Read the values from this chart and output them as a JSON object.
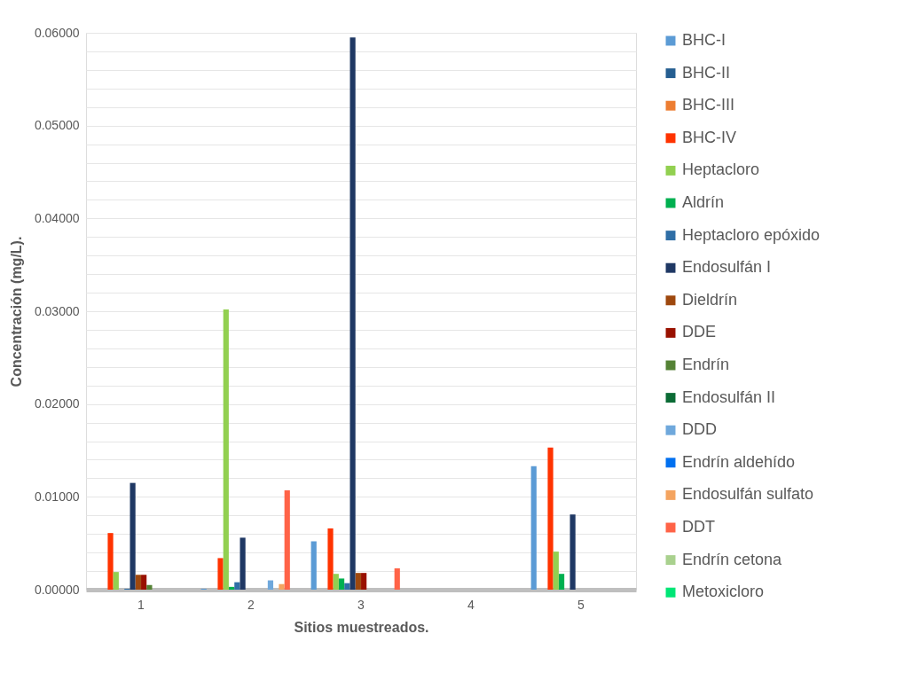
{
  "chart_data": {
    "type": "bar",
    "xlabel": "Sitios muestreados.",
    "ylabel": "Concentración (mg/L).",
    "categories": [
      "1",
      "2",
      "3",
      "4",
      "5"
    ],
    "series": [
      {
        "name": "BHC-I",
        "color": "#5b9bd5",
        "values": [
          0,
          0.0001,
          0.0052,
          0,
          0.0133
        ]
      },
      {
        "name": "BHC-II",
        "color": "#255e91",
        "values": [
          0,
          0,
          0,
          0,
          0
        ]
      },
      {
        "name": "BHC-III",
        "color": "#ed7d31",
        "values": [
          0,
          0,
          0,
          0,
          0
        ]
      },
      {
        "name": "BHC-IV",
        "color": "#ff3300",
        "values": [
          0.0061,
          0.0034,
          0.0066,
          0,
          0.0153
        ]
      },
      {
        "name": "Heptacloro",
        "color": "#92d050",
        "values": [
          0.0019,
          0.0302,
          0.0017,
          0,
          0.0041
        ]
      },
      {
        "name": "Aldrín",
        "color": "#00b050",
        "values": [
          0,
          0.0003,
          0.0012,
          0,
          0.0017
        ]
      },
      {
        "name": "Heptacloro epóxido",
        "color": "#2f6ea6",
        "values": [
          0.0001,
          0.0008,
          0.0007,
          0,
          0
        ]
      },
      {
        "name": "Endosulfán I",
        "color": "#1f3864",
        "values": [
          0.0115,
          0.0056,
          0.0595,
          0,
          0.0081
        ]
      },
      {
        "name": "Dieldrín",
        "color": "#9e480e",
        "values": [
          0.0016,
          0,
          0.0018,
          0,
          0
        ]
      },
      {
        "name": "DDE",
        "color": "#991100",
        "values": [
          0.0016,
          0,
          0.0018,
          0,
          0
        ]
      },
      {
        "name": "Endrín",
        "color": "#548235",
        "values": [
          0.0005,
          0,
          0,
          0,
          0
        ]
      },
      {
        "name": "Endosulfán II",
        "color": "#0b6b35",
        "values": [
          0,
          0,
          0,
          0,
          0
        ]
      },
      {
        "name": "DDD",
        "color": "#6fa8dc",
        "values": [
          0,
          0.001,
          0,
          0,
          0
        ]
      },
      {
        "name": "Endrín aldehído",
        "color": "#0070f0",
        "values": [
          0,
          0,
          0,
          0,
          0
        ]
      },
      {
        "name": "Endosulfán sulfato",
        "color": "#f4a460",
        "values": [
          0,
          0.0006,
          0,
          0,
          0
        ]
      },
      {
        "name": "DDT",
        "color": "#ff6347",
        "values": [
          0,
          0.0107,
          0.0023,
          0,
          0
        ]
      },
      {
        "name": "Endrín cetona",
        "color": "#a9d18e",
        "values": [
          0,
          0,
          0,
          0,
          0
        ]
      },
      {
        "name": "Metoxicloro",
        "color": "#00e676",
        "values": [
          0,
          0,
          0,
          0,
          0
        ]
      }
    ],
    "ylim": [
      0,
      0.06
    ],
    "yticks": [
      {
        "value": 0,
        "label": "0.00000"
      },
      {
        "value": 0.002,
        "label": null
      },
      {
        "value": 0.004,
        "label": null
      },
      {
        "value": 0.006,
        "label": null
      },
      {
        "value": 0.008,
        "label": null
      },
      {
        "value": 0.01,
        "label": "0.01000"
      },
      {
        "value": 0.012,
        "label": null
      },
      {
        "value": 0.014,
        "label": null
      },
      {
        "value": 0.016,
        "label": null
      },
      {
        "value": 0.018,
        "label": null
      },
      {
        "value": 0.02,
        "label": "0.02000"
      },
      {
        "value": 0.022,
        "label": null
      },
      {
        "value": 0.024,
        "label": null
      },
      {
        "value": 0.026,
        "label": null
      },
      {
        "value": 0.028,
        "label": null
      },
      {
        "value": 0.03,
        "label": "0.03000"
      },
      {
        "value": 0.032,
        "label": null
      },
      {
        "value": 0.034,
        "label": null
      },
      {
        "value": 0.036,
        "label": null
      },
      {
        "value": 0.038,
        "label": null
      },
      {
        "value": 0.04,
        "label": "0.04000"
      },
      {
        "value": 0.042,
        "label": null
      },
      {
        "value": 0.044,
        "label": null
      },
      {
        "value": 0.046,
        "label": null
      },
      {
        "value": 0.048,
        "label": null
      },
      {
        "value": 0.05,
        "label": "0.05000"
      },
      {
        "value": 0.052,
        "label": null
      },
      {
        "value": 0.054,
        "label": null
      },
      {
        "value": 0.056,
        "label": null
      },
      {
        "value": 0.058,
        "label": null
      },
      {
        "value": 0.06,
        "label": "0.06000"
      }
    ],
    "grid": "y",
    "legend": "right"
  }
}
